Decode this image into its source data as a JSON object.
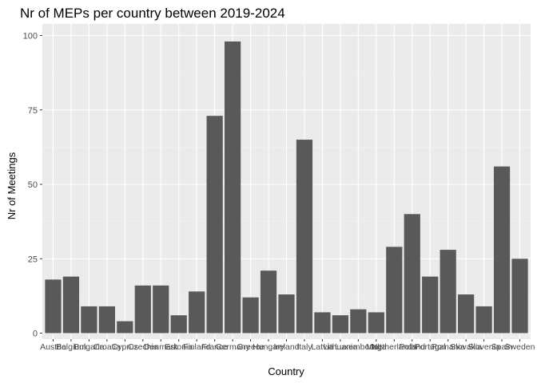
{
  "chart_data": {
    "type": "bar",
    "title": "Nr of MEPs per country between 2019-2024",
    "xlabel": "Country",
    "ylabel": "Nr of Meetings",
    "ylim": [
      0,
      100
    ],
    "yticks": [
      0,
      25,
      50,
      75,
      100
    ],
    "grid": true,
    "legend": "none",
    "colors": {
      "panel": "#ebebeb",
      "grid_major": "#ffffff",
      "bar": "#595959",
      "tick_text": "#4d4d4d"
    },
    "categories": [
      "Austria",
      "Belgium",
      "Bulgaria",
      "Croatia",
      "Cyprus",
      "Czechia",
      "Denmark",
      "Estonia",
      "Finland",
      "France",
      "Germany",
      "Greece",
      "Hungary",
      "Ireland",
      "Italy",
      "Latvia",
      "Lithuania",
      "Luxembourg",
      "Malta",
      "Netherlands",
      "Poland",
      "Portugal",
      "Romania",
      "Slovakia",
      "Slovenia",
      "Spain",
      "Sweden"
    ],
    "values": [
      18,
      19,
      9,
      9,
      4,
      16,
      16,
      6,
      14,
      73,
      98,
      12,
      21,
      13,
      65,
      7,
      6,
      8,
      7,
      29,
      40,
      19,
      28,
      13,
      9,
      56,
      25
    ]
  }
}
